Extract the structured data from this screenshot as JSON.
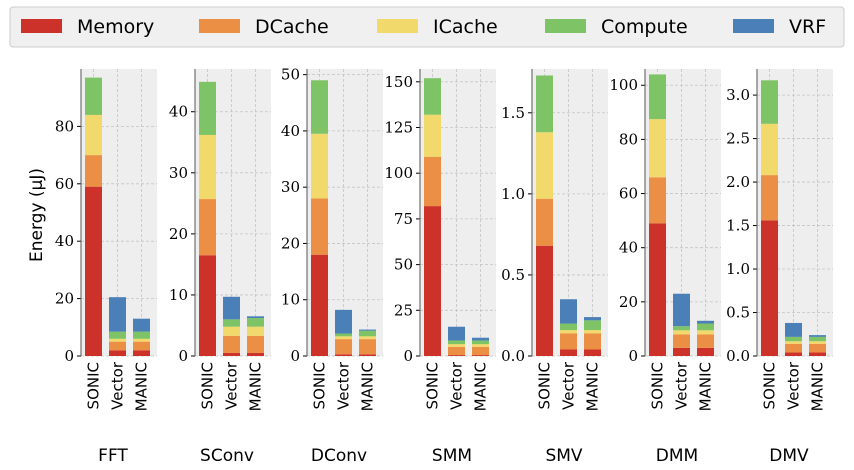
{
  "chart_data": {
    "type": "bar",
    "stacked": true,
    "ylabel": "Energy (μJ)",
    "grid": true,
    "legend": {
      "placement": "top",
      "entries": [
        {
          "name": "Memory",
          "color": "#cc3229"
        },
        {
          "name": "DCache",
          "color": "#eb8f45"
        },
        {
          "name": "ICache",
          "color": "#f2d96b"
        },
        {
          "name": "Compute",
          "color": "#7ec467"
        },
        {
          "name": "VRF",
          "color": "#4a7fb8"
        }
      ]
    },
    "categories": [
      "SONIC",
      "Vector",
      "MANIC"
    ],
    "panels": [
      {
        "title": "FFT",
        "ylim": [
          0,
          100
        ],
        "yticks": [
          0,
          20,
          40,
          60,
          80
        ],
        "series": [
          {
            "name": "Memory",
            "values": [
              59,
              2,
              2
            ]
          },
          {
            "name": "DCache",
            "values": [
              11,
              3,
              3
            ]
          },
          {
            "name": "ICache",
            "values": [
              14,
              1,
              1
            ]
          },
          {
            "name": "Compute",
            "values": [
              13,
              2.5,
              2.5
            ]
          },
          {
            "name": "VRF",
            "values": [
              0,
              12,
              4.5
            ]
          }
        ]
      },
      {
        "title": "SConv",
        "ylim": [
          0,
          47
        ],
        "yticks": [
          0,
          10,
          20,
          30,
          40
        ],
        "series": [
          {
            "name": "Memory",
            "values": [
              16.5,
              0.5,
              0.5
            ]
          },
          {
            "name": "DCache",
            "values": [
              9.2,
              2.8,
              2.8
            ]
          },
          {
            "name": "ICache",
            "values": [
              10.5,
              1.5,
              1.5
            ]
          },
          {
            "name": "Compute",
            "values": [
              8.7,
              1.2,
              1.4
            ]
          },
          {
            "name": "VRF",
            "values": [
              0,
              3.7,
              0.3
            ]
          }
        ]
      },
      {
        "title": "DConv",
        "ylim": [
          0,
          51
        ],
        "yticks": [
          0,
          10,
          20,
          30,
          40,
          50
        ],
        "series": [
          {
            "name": "Memory",
            "values": [
              18,
              0.3,
              0.3
            ]
          },
          {
            "name": "DCache",
            "values": [
              10,
              2.7,
              2.7
            ]
          },
          {
            "name": "ICache",
            "values": [
              11.5,
              0.5,
              0.5
            ]
          },
          {
            "name": "Compute",
            "values": [
              9.5,
              0.5,
              1.0
            ]
          },
          {
            "name": "VRF",
            "values": [
              0,
              4.2,
              0.2
            ]
          }
        ]
      },
      {
        "title": "SMM",
        "ylim": [
          0,
          157
        ],
        "yticks": [
          0,
          25,
          50,
          75,
          100,
          125,
          150
        ],
        "series": [
          {
            "name": "Memory",
            "values": [
              82,
              0.5,
              0.5
            ]
          },
          {
            "name": "DCache",
            "values": [
              27,
              4.5,
              4.5
            ]
          },
          {
            "name": "ICache",
            "values": [
              23,
              1.5,
              1.5
            ]
          },
          {
            "name": "Compute",
            "values": [
              20,
              2,
              2
            ]
          },
          {
            "name": "VRF",
            "values": [
              0,
              7.5,
              1.5
            ]
          }
        ]
      },
      {
        "title": "SMV",
        "ylim": [
          0,
          1.77
        ],
        "yticks": [
          0.0,
          0.5,
          1.0,
          1.5
        ],
        "series": [
          {
            "name": "Memory",
            "values": [
              0.68,
              0.04,
              0.04
            ]
          },
          {
            "name": "DCache",
            "values": [
              0.29,
              0.1,
              0.1
            ]
          },
          {
            "name": "ICache",
            "values": [
              0.41,
              0.02,
              0.02
            ]
          },
          {
            "name": "Compute",
            "values": [
              0.35,
              0.04,
              0.06
            ]
          },
          {
            "name": "VRF",
            "values": [
              0,
              0.15,
              0.02
            ]
          }
        ]
      },
      {
        "title": "DMM",
        "ylim": [
          0,
          106
        ],
        "yticks": [
          0,
          20,
          40,
          60,
          80,
          100
        ],
        "series": [
          {
            "name": "Memory",
            "values": [
              49,
              3,
              3
            ]
          },
          {
            "name": "DCache",
            "values": [
              17,
              5,
              5
            ]
          },
          {
            "name": "ICache",
            "values": [
              21.5,
              1.5,
              1.5
            ]
          },
          {
            "name": "Compute",
            "values": [
              16.5,
              1.5,
              2.5
            ]
          },
          {
            "name": "VRF",
            "values": [
              0,
              12,
              1
            ]
          }
        ]
      },
      {
        "title": "DMV",
        "ylim": [
          0,
          3.3
        ],
        "yticks": [
          0.0,
          0.5,
          1.0,
          1.5,
          2.0,
          2.5,
          3.0
        ],
        "series": [
          {
            "name": "Memory",
            "values": [
              1.56,
              0.04,
              0.04
            ]
          },
          {
            "name": "DCache",
            "values": [
              0.52,
              0.1,
              0.1
            ]
          },
          {
            "name": "ICache",
            "values": [
              0.59,
              0.03,
              0.03
            ]
          },
          {
            "name": "Compute",
            "values": [
              0.5,
              0.05,
              0.05
            ]
          },
          {
            "name": "VRF",
            "values": [
              0,
              0.16,
              0.02
            ]
          }
        ]
      }
    ]
  }
}
